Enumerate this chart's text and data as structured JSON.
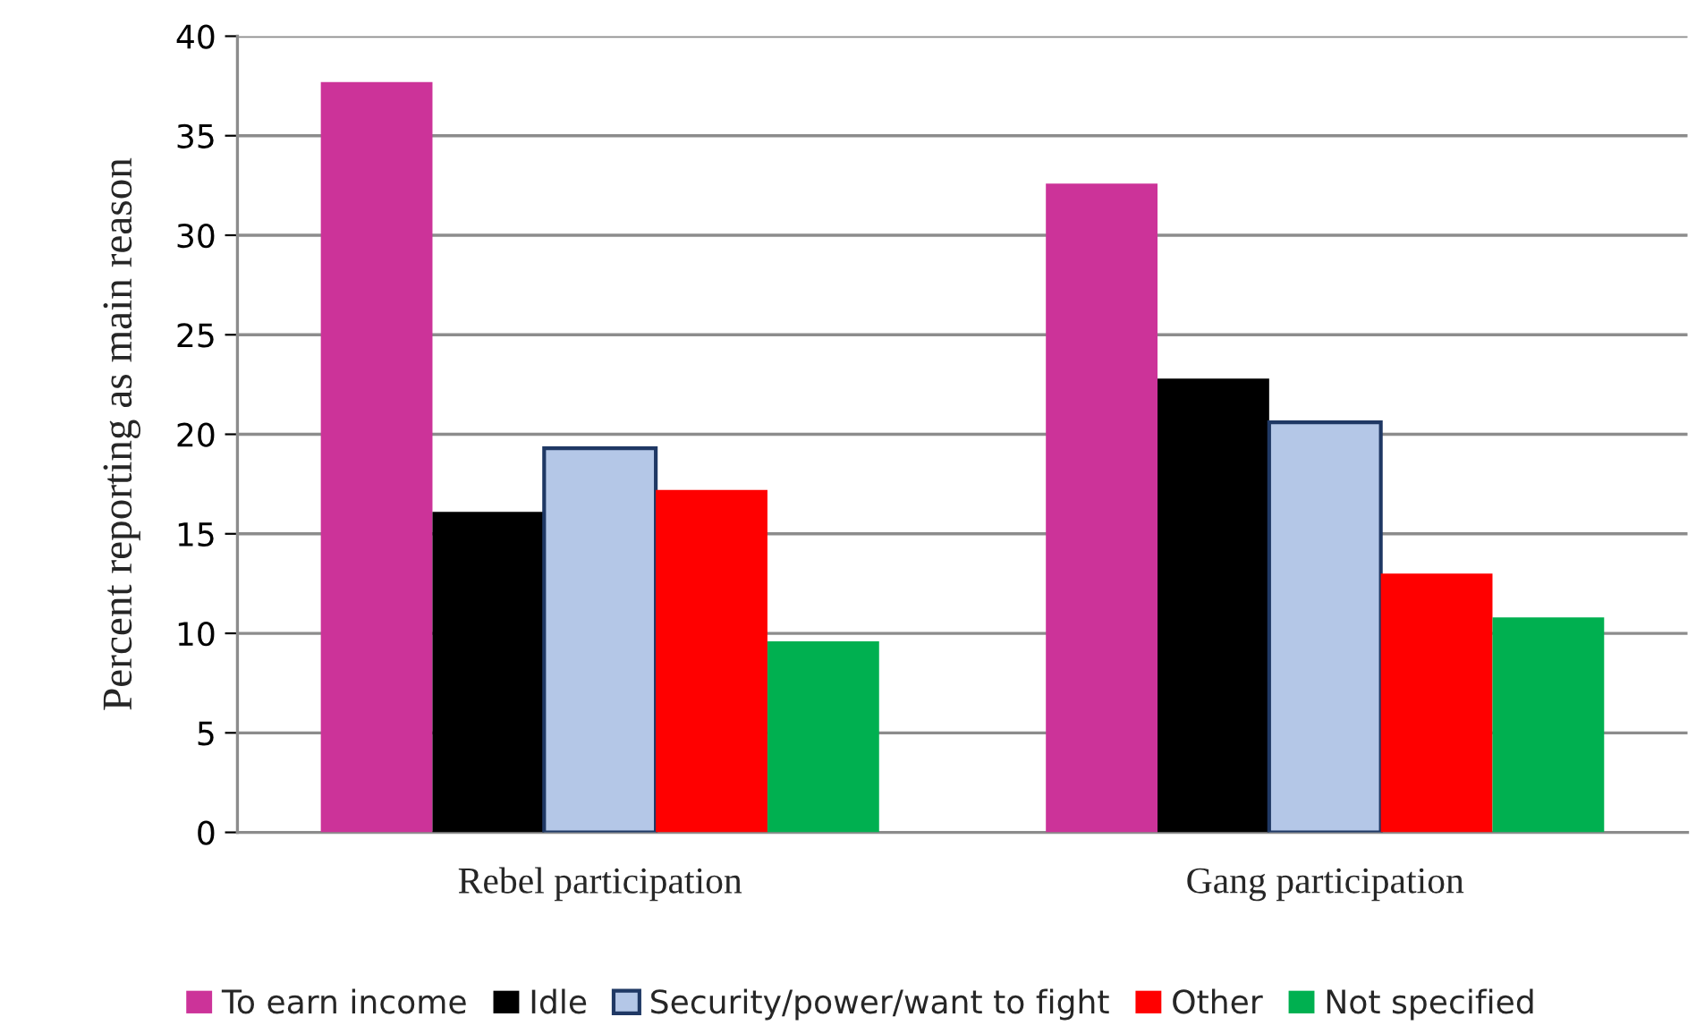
{
  "chart_data": {
    "type": "bar",
    "ylabel": "Percent reporting as main reason",
    "categories": [
      "Rebel participation",
      "Gang participation"
    ],
    "series": [
      {
        "name": "To earn income",
        "color": "#cc3399",
        "values": [
          37.7,
          32.6
        ]
      },
      {
        "name": "Idle",
        "color": "#000000",
        "values": [
          16.1,
          22.8
        ]
      },
      {
        "name": "Security/power/want to fight",
        "color": "#b4c7e7",
        "values": [
          19.3,
          20.6
        ]
      },
      {
        "name": "Other",
        "color": "#ff0000",
        "values": [
          17.2,
          13.0
        ]
      },
      {
        "name": "Not specified",
        "color": "#00b050",
        "values": [
          9.6,
          10.8
        ]
      }
    ],
    "ylim": [
      0,
      40
    ],
    "yticks": [
      0,
      5,
      10,
      15,
      20,
      25,
      30,
      35,
      40
    ],
    "grid": "y",
    "legend": "bottom"
  }
}
